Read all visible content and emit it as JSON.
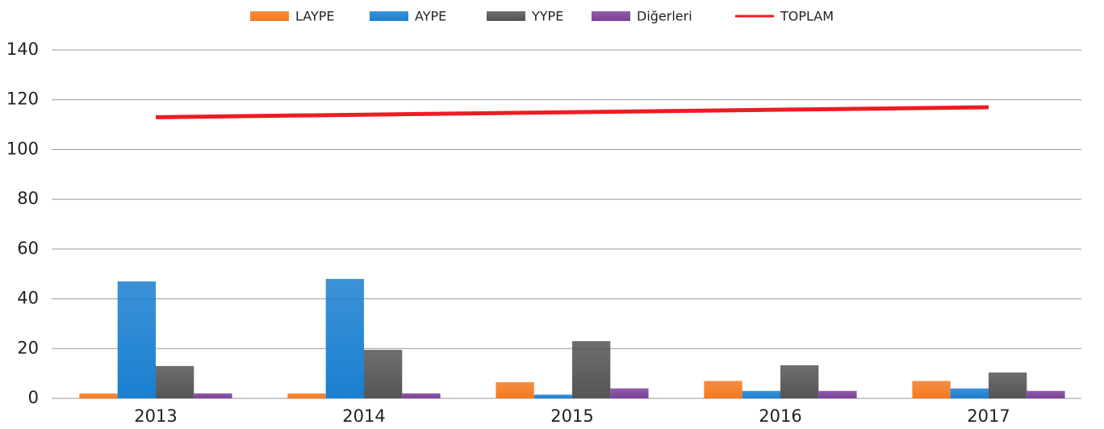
{
  "chart_data": {
    "type": "bar",
    "categories": [
      "2013",
      "2014",
      "2015",
      "2016",
      "2017"
    ],
    "series": [
      {
        "name": "LAYPE",
        "color": "#f47a20",
        "values": [
          2,
          2,
          6.5,
          7,
          7
        ]
      },
      {
        "name": "AYPE",
        "color": "#1a7fd0",
        "values": [
          47,
          48,
          1.5,
          3,
          4
        ]
      },
      {
        "name": "YYPE",
        "color": "#555555",
        "values": [
          13,
          19.5,
          23,
          13.3,
          10.4
        ]
      },
      {
        "name": "Diğerleri",
        "color": "#7d3f98",
        "values": [
          2,
          2,
          4,
          3,
          3
        ]
      },
      {
        "name": "TOPLAM",
        "color": "#ed1c24",
        "type": "line",
        "values": [
          113,
          114,
          115,
          116,
          117
        ]
      }
    ],
    "ylim": [
      0,
      140
    ],
    "yticks": [
      0,
      20,
      40,
      60,
      80,
      100,
      120,
      140
    ],
    "grid": true,
    "legend": "top"
  }
}
